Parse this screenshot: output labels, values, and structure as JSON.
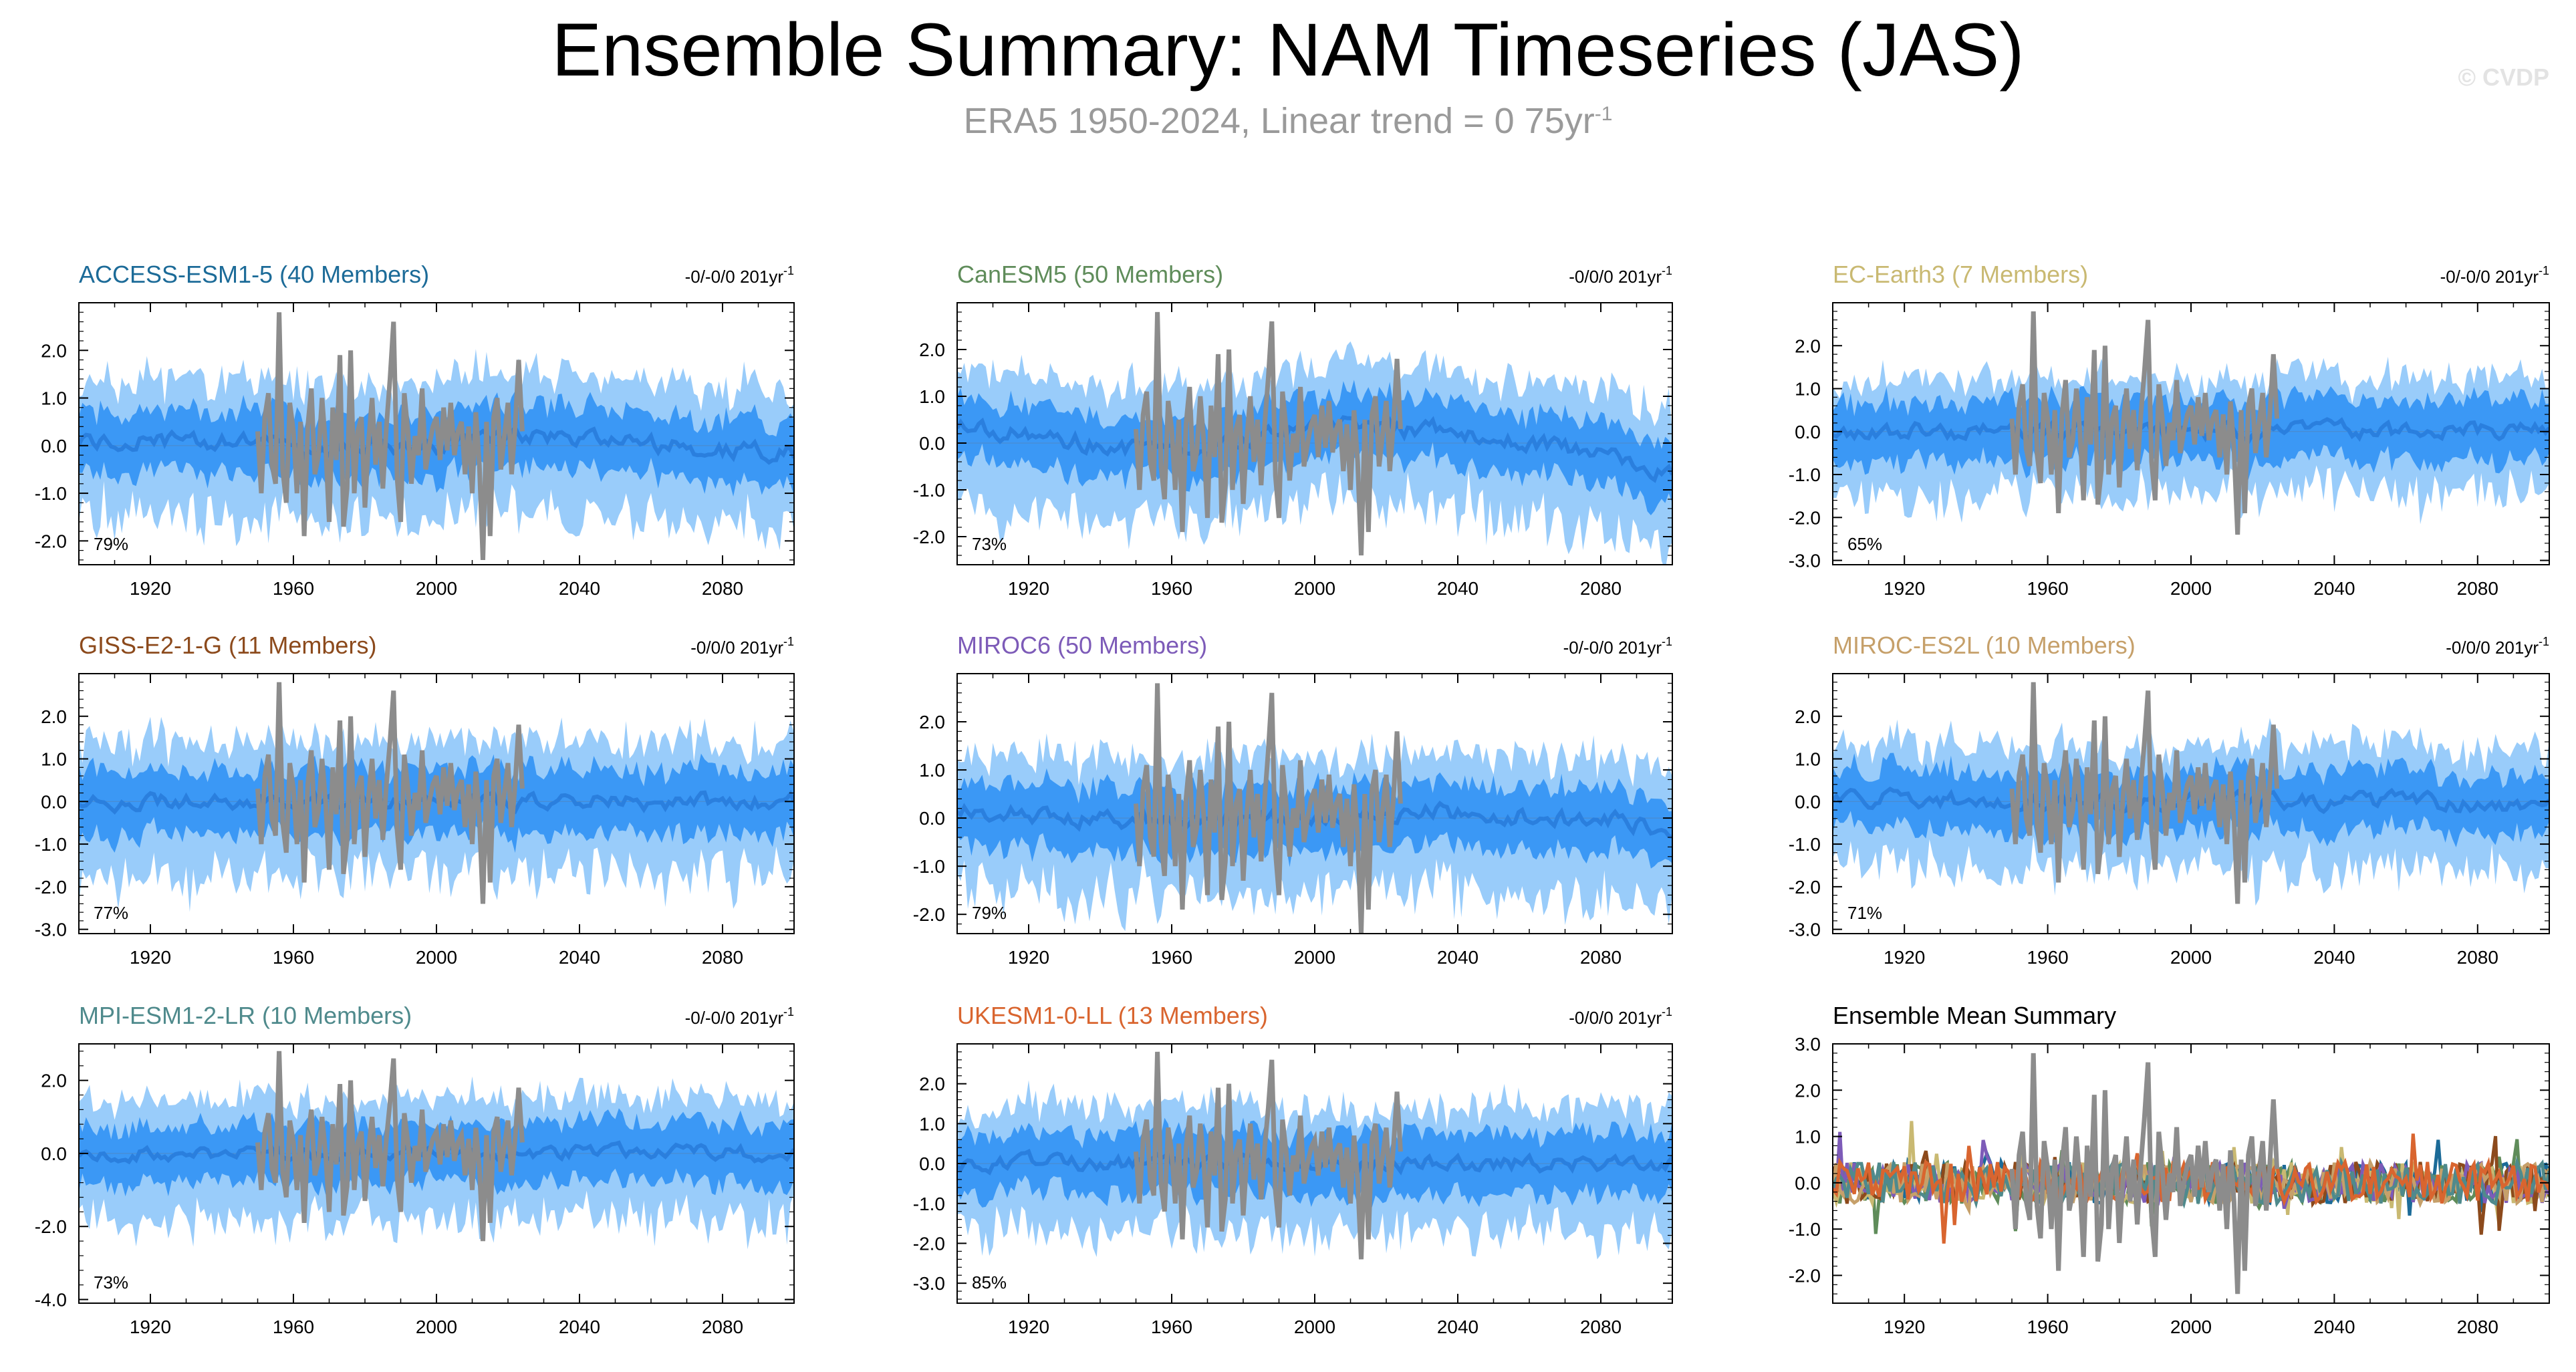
{
  "title": "Ensemble Summary: NAM Timeseries (JAS)",
  "subtitle": "ERA5 1950-2024, Linear trend = 0 75yr",
  "subtitle_sup": "-1",
  "watermark": "© CVDP",
  "colors": {
    "outer_band": "#99ccfa",
    "inner_band": "#3b98f5",
    "mean_line": "#2a7fde",
    "obs_line": "#8c8c8c"
  },
  "chart_data": [
    {
      "id": "access",
      "type": "line",
      "title": "ACCESS-ESM1-5 (40 Members)",
      "title_color": "#1c6b98",
      "trend_label": "-0/-0/0 201yr",
      "trend_sup": "-1",
      "pct": "79%",
      "ylim": [
        -2.5,
        3.0
      ],
      "yticks": [
        2,
        1,
        0,
        -1,
        -2
      ],
      "ytick_labels": [
        "2.0",
        "1.0",
        "0.0",
        "-1.0",
        "-2.0"
      ],
      "xlim": [
        1900,
        2100
      ],
      "xticks": [
        1920,
        1960,
        2000,
        2040,
        2080
      ],
      "outer": 1.3,
      "inner": 0.65,
      "seed": 11,
      "trend": [
        0.1,
        0.1,
        -0.1,
        0.0,
        0.2,
        0.0,
        -0.2
      ]
    },
    {
      "id": "canesm",
      "type": "line",
      "title": "CanESM5 (50 Members)",
      "title_color": "#5f8c5a",
      "trend_label": "-0/0/0 201yr",
      "trend_sup": "-1",
      "pct": "73%",
      "ylim": [
        -2.6,
        3.0
      ],
      "yticks": [
        2,
        1,
        0,
        -1,
        -2
      ],
      "ytick_labels": [
        "2.0",
        "1.0",
        "0.0",
        "-1.0",
        "-2.0"
      ],
      "xlim": [
        1900,
        2100
      ],
      "xticks": [
        1920,
        1960,
        2000,
        2040,
        2080
      ],
      "outer": 1.3,
      "inner": 0.65,
      "seed": 23,
      "trend": [
        0.4,
        0.2,
        0.0,
        -0.2,
        0.0,
        0.3,
        0.4,
        0.3,
        0.2,
        0.0,
        -0.3,
        -0.6
      ]
    },
    {
      "id": "ecearth",
      "type": "line",
      "title": "EC-Earth3 (7 Members)",
      "title_color": "#c9b972",
      "trend_label": "-0/-0/0 201yr",
      "trend_sup": "-1",
      "pct": "65%",
      "ylim": [
        -3.1,
        3.0
      ],
      "yticks": [
        2,
        1,
        0,
        -1,
        -2,
        -3
      ],
      "ytick_labels": [
        "2.0",
        "1.0",
        "0.0",
        "-1.0",
        "-2.0",
        "-3.0"
      ],
      "xlim": [
        1900,
        2100
      ],
      "xticks": [
        1920,
        1960,
        2000,
        2040,
        2080
      ],
      "outer": 1.2,
      "inner": 0.7,
      "seed": 37,
      "trend": [
        0.0,
        0.0,
        0.0
      ]
    },
    {
      "id": "giss",
      "type": "line",
      "title": "GISS-E2-1-G (11 Members)",
      "title_color": "#8c4a1c",
      "trend_label": "-0/0/0 201yr",
      "trend_sup": "-1",
      "pct": "77%",
      "ylim": [
        -3.1,
        3.0
      ],
      "yticks": [
        2,
        1,
        0,
        -1,
        -2,
        -3
      ],
      "ytick_labels": [
        "2.0",
        "1.0",
        "0.0",
        "-1.0",
        "-2.0",
        "-3.0"
      ],
      "xlim": [
        1900,
        2100
      ],
      "xticks": [
        1920,
        1960,
        2000,
        2040,
        2080
      ],
      "outer": 1.4,
      "inner": 0.75,
      "seed": 41,
      "trend": [
        0.0,
        0.0,
        0.0
      ]
    },
    {
      "id": "miroc6",
      "type": "line",
      "title": "MIROC6 (50 Members)",
      "title_color": "#7d5bb8",
      "trend_label": "-0/-0/0 201yr",
      "trend_sup": "-1",
      "pct": "79%",
      "ylim": [
        -2.4,
        3.0
      ],
      "yticks": [
        2,
        1,
        0,
        -1,
        -2
      ],
      "ytick_labels": [
        "2.0",
        "1.0",
        "0.0",
        "-1.0",
        "-2.0"
      ],
      "xlim": [
        1900,
        2100
      ],
      "xticks": [
        1920,
        1960,
        2000,
        2040,
        2080
      ],
      "outer": 1.3,
      "inner": 0.65,
      "seed": 53,
      "trend": [
        0.2,
        0.0,
        -0.1,
        0.0,
        0.1,
        0.0,
        -0.2
      ]
    },
    {
      "id": "mirocesl",
      "type": "line",
      "title": "MIROC-ES2L (10 Members)",
      "title_color": "#c6a06a",
      "trend_label": "-0/0/0 201yr",
      "trend_sup": "-1",
      "pct": "71%",
      "ylim": [
        -3.1,
        3.0
      ],
      "yticks": [
        2,
        1,
        0,
        -1,
        -2,
        -3
      ],
      "ytick_labels": [
        "2.0",
        "1.0",
        "0.0",
        "-1.0",
        "-2.0",
        "-3.0"
      ],
      "xlim": [
        1900,
        2100
      ],
      "xticks": [
        1920,
        1960,
        2000,
        2040,
        2080
      ],
      "outer": 1.3,
      "inner": 0.7,
      "seed": 67,
      "trend": [
        0.1,
        0.0,
        0.0,
        0.0,
        -0.1
      ]
    },
    {
      "id": "mpi",
      "type": "line",
      "title": "MPI-ESM1-2-LR (10 Members)",
      "title_color": "#4f8a8c",
      "trend_label": "-0/-0/0 201yr",
      "trend_sup": "-1",
      "pct": "73%",
      "ylim": [
        -4.1,
        3.0
      ],
      "yticks": [
        2,
        0,
        -2,
        -4
      ],
      "ytick_labels": [
        "2.0",
        "0.0",
        "-2.0",
        "-4.0"
      ],
      "xlim": [
        1900,
        2100
      ],
      "xticks": [
        1920,
        1960,
        2000,
        2040,
        2080
      ],
      "outer": 1.5,
      "inner": 0.8,
      "seed": 79,
      "trend": [
        0.0,
        0.0,
        0.0
      ]
    },
    {
      "id": "ukesm",
      "type": "line",
      "title": "UKESM1-0-LL (13 Members)",
      "title_color": "#d9652f",
      "trend_label": "-0/0/0 201yr",
      "trend_sup": "-1",
      "pct": "85%",
      "ylim": [
        -3.5,
        3.0
      ],
      "yticks": [
        2,
        1,
        0,
        -1,
        -2,
        -3
      ],
      "ytick_labels": [
        "2.0",
        "1.0",
        "0.0",
        "-1.0",
        "-2.0",
        "-3.0"
      ],
      "xlim": [
        1900,
        2100
      ],
      "xticks": [
        1920,
        1960,
        2000,
        2040,
        2080
      ],
      "outer": 1.4,
      "inner": 0.75,
      "seed": 97,
      "trend": [
        0.0,
        0.0,
        0.0
      ]
    },
    {
      "id": "summary",
      "type": "line",
      "title": "Ensemble Mean Summary",
      "title_color": "#000000",
      "trend_label": "",
      "trend_sup": "",
      "pct": "",
      "ylim": [
        -2.6,
        3.0
      ],
      "yticks": [
        3,
        2,
        1,
        0,
        -1,
        -2
      ],
      "ytick_labels": [
        "3.0",
        "2.0",
        "1.0",
        "0.0",
        "-1.0",
        "-2.0"
      ],
      "xlim": [
        1900,
        2100
      ],
      "xticks": [
        1920,
        1960,
        2000,
        2040,
        2080
      ],
      "summary": true,
      "series_colors": [
        "#1c6b98",
        "#5f8c5a",
        "#c9b972",
        "#8c4a1c",
        "#7d5bb8",
        "#c6a06a",
        "#4f8a8c",
        "#d9652f"
      ]
    }
  ],
  "obs": {
    "start": 1950,
    "values": [
      0.3,
      -1.0,
      0.6,
      1.1,
      -0.4,
      -0.8,
      2.8,
      -0.5,
      -1.2,
      0.9,
      0.3,
      -1.0,
      0.5,
      -1.9,
      0.4,
      1.2,
      -0.6,
      -0.2,
      1.0,
      0.0,
      -1.6,
      0.8,
      -0.3,
      1.9,
      -1.7,
      -0.9,
      2.0,
      -1.0,
      0.3,
      0.6,
      -1.3,
      0.1,
      1.0,
      -0.4,
      0.5,
      -0.9,
      0.4,
      1.4,
      2.6,
      -0.7,
      -1.6,
      1.1,
      0.3,
      -0.8,
      0.2,
      -0.2,
      1.2,
      -0.5,
      0.0,
      0.4,
      0.6,
      -0.3,
      0.8,
      -0.1,
      0.9,
      -0.2,
      0.3,
      0.5,
      -0.6,
      0.4,
      -1.0,
      0.7,
      -0.4,
      -2.4,
      0.5,
      -1.9,
      0.6,
      1.0,
      -0.5,
      0.2,
      0.9,
      -0.6,
      0.4,
      1.8,
      0.3
    ]
  }
}
